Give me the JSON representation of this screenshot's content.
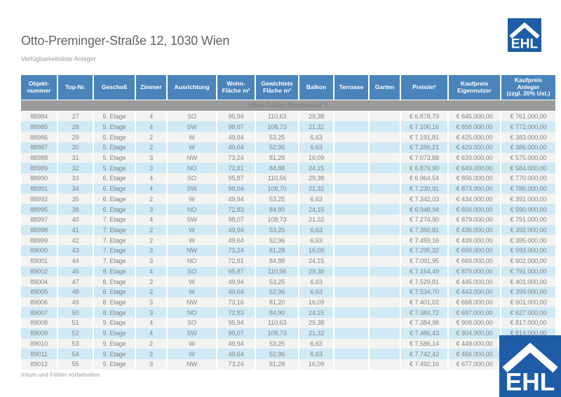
{
  "page": {
    "title": "Otto-Preminger-Straße 12, 1030 Wien",
    "subtitle": "Verfügbarkeitsliste Anleger",
    "footer_note": "Irrtum und Fehler vorbehalten."
  },
  "logo": {
    "text": "EHL",
    "blue": "#1e5da6"
  },
  "colors": {
    "header_blue": "#4a84bb",
    "section_gray": "#9b9b9b",
    "row_light": "#f3f3f1",
    "row_blue": "#cfe9f5",
    "data_text_gray": "#858585"
  },
  "table": {
    "section_header": "Hilde-Güden-Promenade 5",
    "columns": [
      "Objekt-\nnummer",
      "Top-Nr.",
      "Geschoß",
      "Zimmer",
      "Ausrichtung",
      "Wohn-\nFläche m²",
      "Gewichtete\nFläche m²",
      "Balkon",
      "Terrasse",
      "Garten",
      "Preis/m²",
      "Kaufpreis\nEigennutzer",
      "Kaufpreis\nAnleger\n(zzgl. 20% Ust.)"
    ],
    "rows": [
      [
        "88984",
        "27",
        "5. Etage",
        "4",
        "SO",
        "95,94",
        "110,63",
        "29,38",
        "",
        "",
        "€ 6.878,79",
        "€ 845.000,00",
        "€ 761.000,00"
      ],
      [
        "88985",
        "28",
        "5. Etage",
        "4",
        "SW",
        "98,07",
        "108,73",
        "21,32",
        "",
        "",
        "€ 7.100,16",
        "€ 858.000,00",
        "€ 772.000,00"
      ],
      [
        "88986",
        "29",
        "5. Etage",
        "2",
        "W",
        "49,94",
        "53,25",
        "6,63",
        "",
        "",
        "€ 7.191,81",
        "€ 425.000,00",
        "€ 383.000,00"
      ],
      [
        "88987",
        "30",
        "5. Etage",
        "2",
        "W",
        "49,64",
        "52,96",
        "6,63",
        "",
        "",
        "€ 7.289,21",
        "€ 429.000,00",
        "€ 386.000,00"
      ],
      [
        "88988",
        "31",
        "5. Etage",
        "3",
        "NW",
        "73,24",
        "81,28",
        "16,09",
        "",
        "",
        "€ 7.073,88",
        "€ 639.000,00",
        "€ 575.000,00"
      ],
      [
        "88989",
        "32",
        "5. Etage",
        "3",
        "NO",
        "72,81",
        "84,88",
        "24,15",
        "",
        "",
        "€ 6.879,90",
        "€ 649.000,00",
        "€ 584.000,00"
      ],
      [
        "88990",
        "33",
        "6. Etage",
        "4",
        "SO",
        "95,87",
        "110,56",
        "29,38",
        "",
        "",
        "€ 6.964,54",
        "€ 856.000,00",
        "€ 770.000,00"
      ],
      [
        "88991",
        "34",
        "6. Etage",
        "4",
        "SW",
        "98,04",
        "108,70",
        "21,32",
        "",
        "",
        "€ 7.230,91",
        "€ 873.000,00",
        "€ 786.000,00"
      ],
      [
        "88992",
        "35",
        "6. Etage",
        "2",
        "W",
        "49,94",
        "53,25",
        "6,63",
        "",
        "",
        "€ 7.342,03",
        "€ 434.000,00",
        "€ 391.000,00"
      ],
      [
        "88995",
        "38",
        "6. Etage",
        "3",
        "NO",
        "72,83",
        "84,90",
        "24,15",
        "",
        "",
        "€ 6.948,94",
        "€ 656.000,00",
        "€ 590.000,00"
      ],
      [
        "88997",
        "40",
        "7. Etage",
        "4",
        "SW",
        "98,07",
        "108,73",
        "21,32",
        "",
        "",
        "€ 7.274,90",
        "€ 879.000,00",
        "€ 791.000,00"
      ],
      [
        "88998",
        "41",
        "7. Etage",
        "2",
        "W",
        "49,94",
        "53,25",
        "6,63",
        "",
        "",
        "€ 7.360,81",
        "€ 436.000,00",
        "€ 392.000,00"
      ],
      [
        "88999",
        "42",
        "7. Etage",
        "2",
        "W",
        "49,64",
        "52,96",
        "6,63",
        "",
        "",
        "€ 7.459,16",
        "€ 439.000,00",
        "€ 395.000,00"
      ],
      [
        "89000",
        "43",
        "7. Etage",
        "3",
        "NW",
        "73,24",
        "81,28",
        "16,09",
        "",
        "",
        "€ 7.295,32",
        "€ 659.000,00",
        "€ 593.000,00"
      ],
      [
        "89001",
        "44",
        "7. Etage",
        "3",
        "NO",
        "72,81",
        "84,88",
        "24,15",
        "",
        "",
        "€ 7.091,95",
        "€ 669.000,00",
        "€ 602.000,00"
      ],
      [
        "89002",
        "45",
        "8. Etage",
        "4",
        "SO",
        "95,87",
        "110,56",
        "29,38",
        "",
        "",
        "€ 7.154,49",
        "€ 879.000,00",
        "€ 791.000,00"
      ],
      [
        "89004",
        "47",
        "8. Etage",
        "2",
        "W",
        "49,94",
        "53,25",
        "6,63",
        "",
        "",
        "€ 7.529,81",
        "€ 445.000,00",
        "€ 401.000,00"
      ],
      [
        "89005",
        "48",
        "8. Etage",
        "2",
        "W",
        "49,64",
        "52,96",
        "6,63",
        "",
        "",
        "€ 7.534,70",
        "€ 443.000,00",
        "€ 399.000,00"
      ],
      [
        "89006",
        "49",
        "8. Etage",
        "3",
        "NW",
        "73,16",
        "81,20",
        "16,09",
        "",
        "",
        "€ 7.401,02",
        "€ 668.000,00",
        "€ 601.000,00"
      ],
      [
        "89007",
        "50",
        "8. Etage",
        "3",
        "NO",
        "72,83",
        "84,90",
        "24,15",
        "",
        "",
        "€ 7.384,72",
        "€ 697.000,00",
        "€ 627.000,00"
      ],
      [
        "89008",
        "51",
        "9. Etage",
        "4",
        "SO",
        "95,94",
        "110,63",
        "29,38",
        "",
        "",
        "€ 7.384,98",
        "€ 908.000,00",
        "€ 817.000,00"
      ],
      [
        "89009",
        "52",
        "9. Etage",
        "4",
        "SW",
        "98,07",
        "108,73",
        "21,32",
        "",
        "",
        "€ 7.486,43",
        "€ 904.000,00",
        "€ 814.000,00"
      ],
      [
        "89010",
        "53",
        "9. Etage",
        "2",
        "W",
        "49,94",
        "53,25",
        "6,63",
        "",
        "",
        "€ 7.586,14",
        "€ 449.000,00",
        "€"
      ],
      [
        "89011",
        "54",
        "9. Etage",
        "2",
        "W",
        "49,64",
        "52,96",
        "6,63",
        "",
        "",
        "€ 7.742,42",
        "€ 456.000,00",
        "€"
      ],
      [
        "89012",
        "55",
        "9. Etage",
        "3",
        "NW",
        "73,24",
        "81,28",
        "16,09",
        "",
        "",
        "€ 7.492,16",
        "€ 677.000,00",
        "€"
      ]
    ]
  }
}
